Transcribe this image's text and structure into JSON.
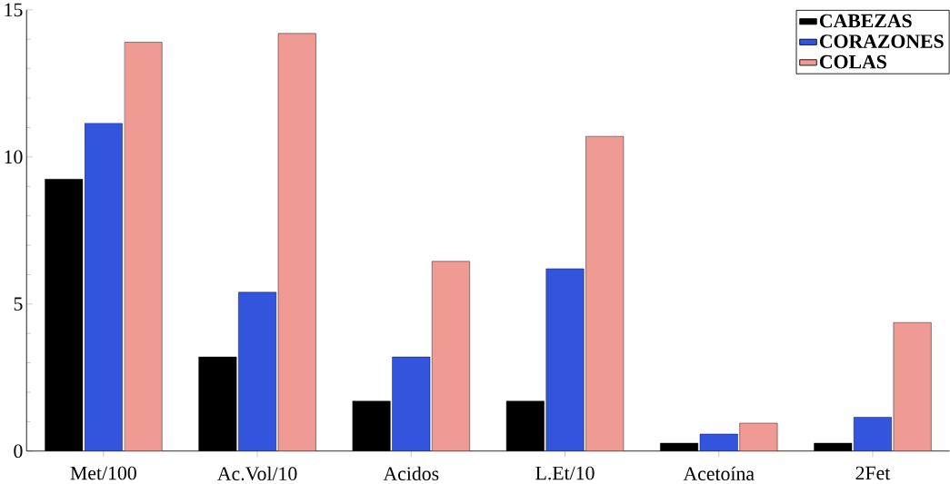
{
  "chart_data": {
    "type": "bar",
    "categories": [
      "Met/100",
      "Ac.Vol/10",
      "Acidos",
      "L.Et/10",
      "Acetoína",
      "2Fet"
    ],
    "series": [
      {
        "name": "CABEZAS",
        "color": "#000000",
        "values": [
          9.25,
          3.2,
          1.7,
          1.7,
          0.27,
          0.27
        ]
      },
      {
        "name": "CORAZONES",
        "color": "#3355dd",
        "values": [
          11.15,
          5.4,
          3.2,
          6.2,
          0.58,
          1.15
        ]
      },
      {
        "name": "COLAS",
        "color": "#f09a94",
        "values": [
          13.9,
          14.2,
          6.45,
          10.7,
          0.95,
          4.37
        ]
      }
    ],
    "ylim": [
      0,
      15
    ],
    "yticks": [
      0,
      5,
      10,
      15
    ],
    "legend": "top right"
  }
}
